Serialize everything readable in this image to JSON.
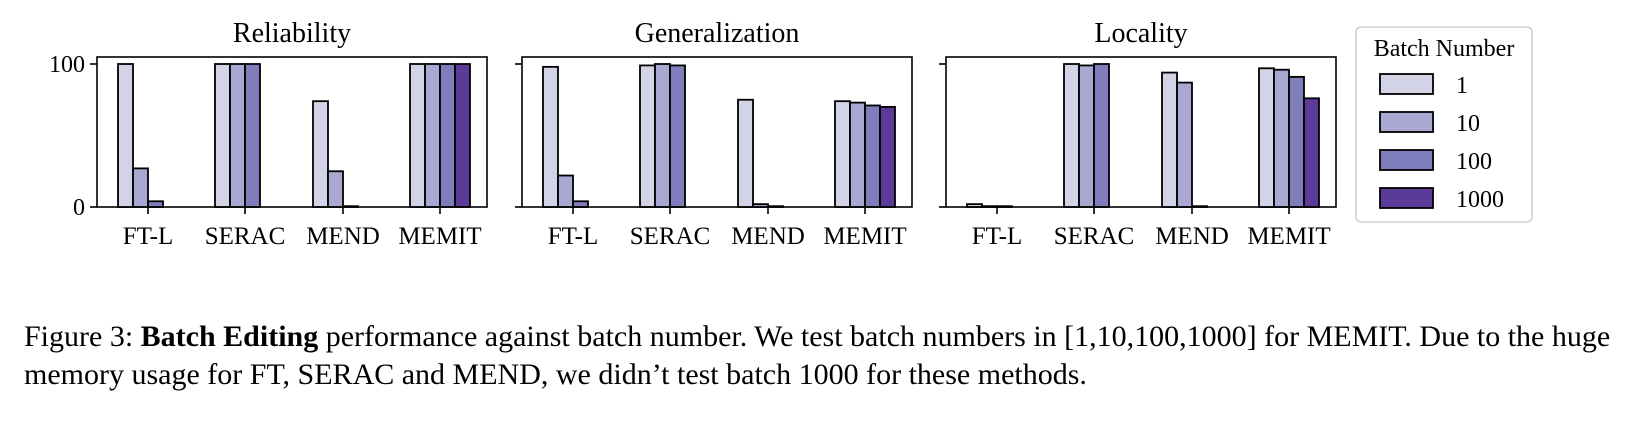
{
  "chart_data": {
    "type": "bar",
    "categories": [
      "FT-L",
      "SERAC",
      "MEND",
      "MEMIT"
    ],
    "series_names": [
      "1",
      "10",
      "100",
      "1000"
    ],
    "series_colors": [
      "#d3d3e8",
      "#a8a8d2",
      "#7f7dbb",
      "#5c3a98"
    ],
    "ylim": [
      0,
      105
    ],
    "yticks": [
      0,
      100
    ],
    "grid": false,
    "legend": {
      "title": "Batch Number",
      "placement": "right",
      "entries": [
        "1",
        "10",
        "100",
        "1000"
      ]
    },
    "panels": [
      {
        "title": "Reliability",
        "values": {
          "FT-L": [
            100,
            27,
            4,
            null
          ],
          "SERAC": [
            100,
            100,
            100,
            null
          ],
          "MEND": [
            74,
            25,
            0.3,
            null
          ],
          "MEMIT": [
            100,
            100,
            100,
            100
          ]
        }
      },
      {
        "title": "Generalization",
        "values": {
          "FT-L": [
            98,
            22,
            4,
            null
          ],
          "SERAC": [
            99,
            100,
            99,
            null
          ],
          "MEND": [
            75,
            2,
            0.3,
            null
          ],
          "MEMIT": [
            74,
            73,
            71,
            70
          ]
        }
      },
      {
        "title": "Locality",
        "values": {
          "FT-L": [
            2,
            0.5,
            0.3,
            null
          ],
          "SERAC": [
            100,
            99,
            100,
            null
          ],
          "MEND": [
            94,
            87,
            0.3,
            null
          ],
          "MEMIT": [
            97,
            96,
            91,
            76
          ]
        }
      }
    ]
  },
  "caption": {
    "prefix": "Figure 3: ",
    "bold": "Batch Editing",
    "rest": " performance against batch number. We test batch numbers in [1,10,100,1000] for MEMIT. Due to the huge memory usage for FT, SERAC and MEND, we didn’t test batch 1000 for these methods."
  }
}
